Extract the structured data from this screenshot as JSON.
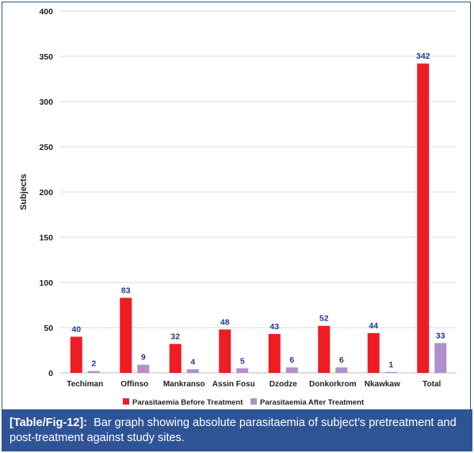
{
  "chart_data": {
    "type": "bar",
    "title": "",
    "xlabel": "",
    "ylabel": "Subjects",
    "ylim": [
      0,
      400
    ],
    "yticks": [
      0,
      50,
      100,
      150,
      200,
      250,
      300,
      350,
      400
    ],
    "grid": true,
    "legend_position": "bottom",
    "categories": [
      "Techiman",
      "Offinso",
      "Mankranso",
      "Assin Fosu",
      "Dzodze",
      "Donkorkrom",
      "Nkawkaw",
      "Total"
    ],
    "series": [
      {
        "name": "Parasitaemia Before Treatment",
        "color": "#ee1d24",
        "values": [
          40,
          83,
          32,
          48,
          43,
          52,
          44,
          342
        ]
      },
      {
        "name": "Parasitaemia After Treatment",
        "color": "#b08fcc",
        "values": [
          2,
          9,
          4,
          5,
          6,
          6,
          1,
          33
        ]
      }
    ],
    "label_color": "#1f3a93"
  },
  "caption": {
    "tag": "[Table/Fig-12]:",
    "text": "Bar graph showing absolute parasitaemia of subject’s pretreatment and post-treatment against study sites."
  }
}
